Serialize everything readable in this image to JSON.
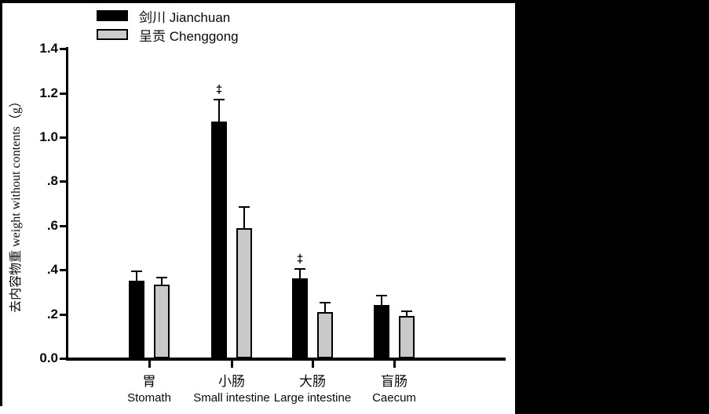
{
  "legend": {
    "items": [
      {
        "label": "剑川 Jianchuan",
        "color": "#000000",
        "swatch": "black-swatch"
      },
      {
        "label": "呈贡 Chenggong",
        "color": "#c9c9c9",
        "swatch": "gray-swatch"
      }
    ]
  },
  "y_axis": {
    "label": "去内容物重 weight without contents（g）",
    "tick_labels": [
      "0.0",
      ".2",
      ".4",
      ".6",
      ".8",
      "1.0",
      "1.2",
      "1.4"
    ],
    "tick_values": [
      0,
      0.2,
      0.4,
      0.6,
      0.8,
      1.0,
      1.2,
      1.4
    ],
    "range": [
      0,
      1.4
    ]
  },
  "chart_data": {
    "type": "bar",
    "title": "",
    "xlabel": "",
    "ylabel": "去内容物重 weight without contents（g）",
    "ylim": [
      0,
      1.4
    ],
    "grid": false,
    "legend_position": "top-left",
    "categories": [
      {
        "key": "stomach",
        "zh": "胃",
        "en": "Stomath"
      },
      {
        "key": "small-intestine",
        "zh": "小肠",
        "en": "Small intestine"
      },
      {
        "key": "large-intestine",
        "zh": "大肠",
        "en": "Large intestine"
      },
      {
        "key": "caecum",
        "zh": "盲肠",
        "en": "Caecum"
      }
    ],
    "series": [
      {
        "name": "剑川 Jianchuan",
        "key": "jianchuan",
        "color": "#000000",
        "values": [
          0.35,
          1.07,
          0.36,
          0.24
        ],
        "errors": [
          0.04,
          0.095,
          0.042,
          0.04
        ],
        "sig_markers": [
          "",
          "‡",
          "‡",
          ""
        ]
      },
      {
        "name": "呈贡 Chenggong",
        "key": "chenggong",
        "color": "#c9c9c9",
        "values": [
          0.335,
          0.59,
          0.21,
          0.19
        ],
        "errors": [
          0.025,
          0.09,
          0.04,
          0.02
        ],
        "sig_markers": [
          "",
          "",
          "",
          ""
        ]
      }
    ]
  }
}
